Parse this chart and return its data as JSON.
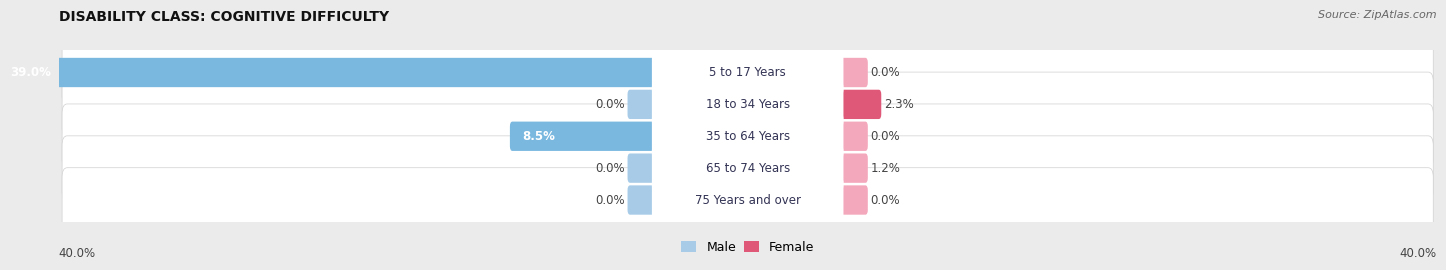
{
  "title": "DISABILITY CLASS: COGNITIVE DIFFICULTY",
  "source": "Source: ZipAtlas.com",
  "categories": [
    "5 to 17 Years",
    "18 to 34 Years",
    "35 to 64 Years",
    "65 to 74 Years",
    "75 Years and over"
  ],
  "male_values": [
    39.0,
    0.0,
    8.5,
    0.0,
    0.0
  ],
  "female_values": [
    0.0,
    2.3,
    0.0,
    1.2,
    0.0
  ],
  "male_color_large": "#7ab8e0",
  "male_color_small": "#a8cce8",
  "female_color_large": "#e05878",
  "female_color_small": "#f4a8bc",
  "axis_max": 40.0,
  "bg_color": "#ebebeb",
  "row_bg_color": "#f5f5f5",
  "title_fontsize": 10,
  "label_fontsize": 8.5,
  "tick_fontsize": 8.5,
  "source_fontsize": 8,
  "legend_fontsize": 9
}
